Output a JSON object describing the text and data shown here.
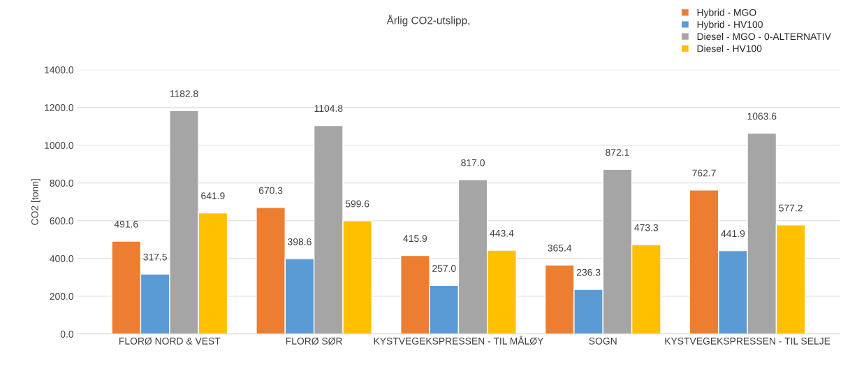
{
  "chart_data": {
    "type": "bar",
    "title": "Årlig CO2-utslipp,",
    "ylabel": "CO2 [tonn]",
    "categories": [
      "FLORØ NORD & VEST",
      "FLORØ SØR",
      "KYSTVEGEKSPRESSEN - TIL MÅLØY",
      "SOGN",
      "KYSTVEGEKSPRESSEN - TIL SELJE"
    ],
    "series": [
      {
        "name": "Hybrid - MGO",
        "color": "#ed7d31",
        "values": [
          491.6,
          670.3,
          415.9,
          365.4,
          762.7
        ],
        "value_labels": [
          "491.6",
          "670.3",
          "415.9",
          "365.4",
          "762.7"
        ]
      },
      {
        "name": "Hybrid - HV100",
        "color": "#5b9bd5",
        "values": [
          317.5,
          398.6,
          257.0,
          236.3,
          441.9
        ],
        "value_labels": [
          "317.5",
          "398.6",
          "257.0",
          "236.3",
          "441.9"
        ]
      },
      {
        "name": "Diesel - MGO - 0-ALTERNATIV",
        "color": "#a5a5a5",
        "values": [
          1182.8,
          1104.8,
          817.0,
          872.1,
          1063.6
        ],
        "value_labels": [
          "1182.8",
          "1104.8",
          "817.0",
          "872.1",
          "1063.6"
        ]
      },
      {
        "name": "Diesel - HV100",
        "color": "#ffc000",
        "values": [
          641.9,
          599.6,
          443.4,
          473.3,
          577.2
        ],
        "value_labels": [
          "641.9",
          "599.6",
          "443.4",
          "473.3",
          "577.2"
        ]
      }
    ],
    "ylim": [
      0,
      1400
    ],
    "yticks": [
      {
        "value": 0,
        "label": "0.0"
      },
      {
        "value": 200,
        "label": "200.0"
      },
      {
        "value": 400,
        "label": "400.0"
      },
      {
        "value": 600,
        "label": "600.0"
      },
      {
        "value": 800,
        "label": "800.0"
      },
      {
        "value": 1000,
        "label": "1000.0"
      },
      {
        "value": 1200,
        "label": "1200.0"
      },
      {
        "value": 1400,
        "label": "1400.0"
      }
    ],
    "grid": "y",
    "legend": "top right"
  }
}
